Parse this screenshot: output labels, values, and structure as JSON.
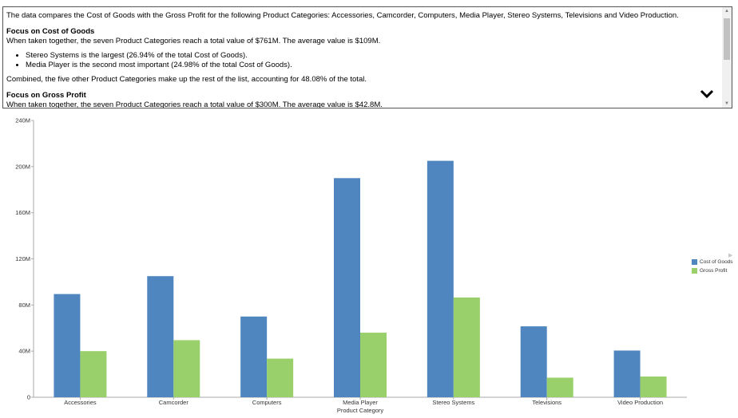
{
  "narrative": {
    "intro": "The data compares the Cost of Goods with the Gross Profit for the following Product Categories: Accessories, Camcorder, Computers, Media Player, Stereo Systems, Televisions and Video Production.",
    "cost_heading": "Focus on Cost of Goods",
    "cost_summary": "When taken together, the seven Product Categories reach a total value of $761M. The average value is $109M.",
    "cost_bullets": [
      "Stereo Systems is the largest (26.94% of the total Cost of Goods).",
      "Media Player is the second most important (24.98% of the total Cost of Goods)."
    ],
    "cost_combined": "Combined, the five other Product Categories make up the rest of the list, accounting for 48.08% of the total.",
    "profit_heading": "Focus on Gross Profit",
    "profit_summary": "When taken together, the seven Product Categories reach a total value of $300M. The average value is $42.8M."
  },
  "colors": {
    "cost": "#4f86c0",
    "profit": "#9ad06b",
    "axis": "#aaaaaa"
  },
  "chart_data": {
    "type": "bar",
    "categories": [
      "Accessories",
      "Camcorder",
      "Computers",
      "Media Player",
      "Stereo Systems",
      "Televisions",
      "Video Production"
    ],
    "series": [
      {
        "name": "Cost of Goods",
        "values": [
          89.5,
          105,
          70,
          190,
          205,
          61.5,
          40.5
        ]
      },
      {
        "name": "Gross Profit",
        "values": [
          40,
          49.5,
          33.5,
          56,
          86.5,
          17,
          18
        ]
      }
    ],
    "ylim": [
      0,
      240
    ],
    "yticks": [
      0,
      40,
      80,
      120,
      160,
      200,
      240
    ],
    "ytick_labels": [
      "0",
      "40M",
      "80M",
      "120M",
      "160M",
      "200M",
      "240M"
    ],
    "xlabel": "Product Category",
    "ylabel": "",
    "legend": "right",
    "grid": false
  }
}
